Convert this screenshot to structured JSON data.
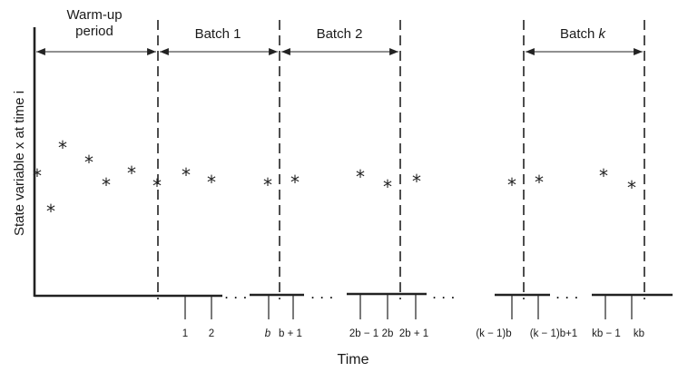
{
  "headers": {
    "warmup_line1": "Warm-up",
    "warmup_line2": "period",
    "batch1": "Batch 1",
    "batch2": "Batch 2",
    "batchk_prefix": "Batch ",
    "batchk_var": "k"
  },
  "axis": {
    "y_label": "State variable x at time i",
    "x_label": "Time"
  },
  "ticks": {
    "t1": "1",
    "t2": "2",
    "b": "b",
    "b_plus_1": "b + 1",
    "two_b_minus_1": "2b − 1",
    "two_b": "2b",
    "two_b_plus_1": "2b + 1",
    "k_minus_1_b": "(k − 1)b",
    "k_minus_1_b_plus_1": "(k − 1)b+1",
    "kb_minus_1": "kb − 1",
    "kb": "kb"
  },
  "markers": {
    "observation": "*",
    "ellipsis": ". . ."
  }
}
